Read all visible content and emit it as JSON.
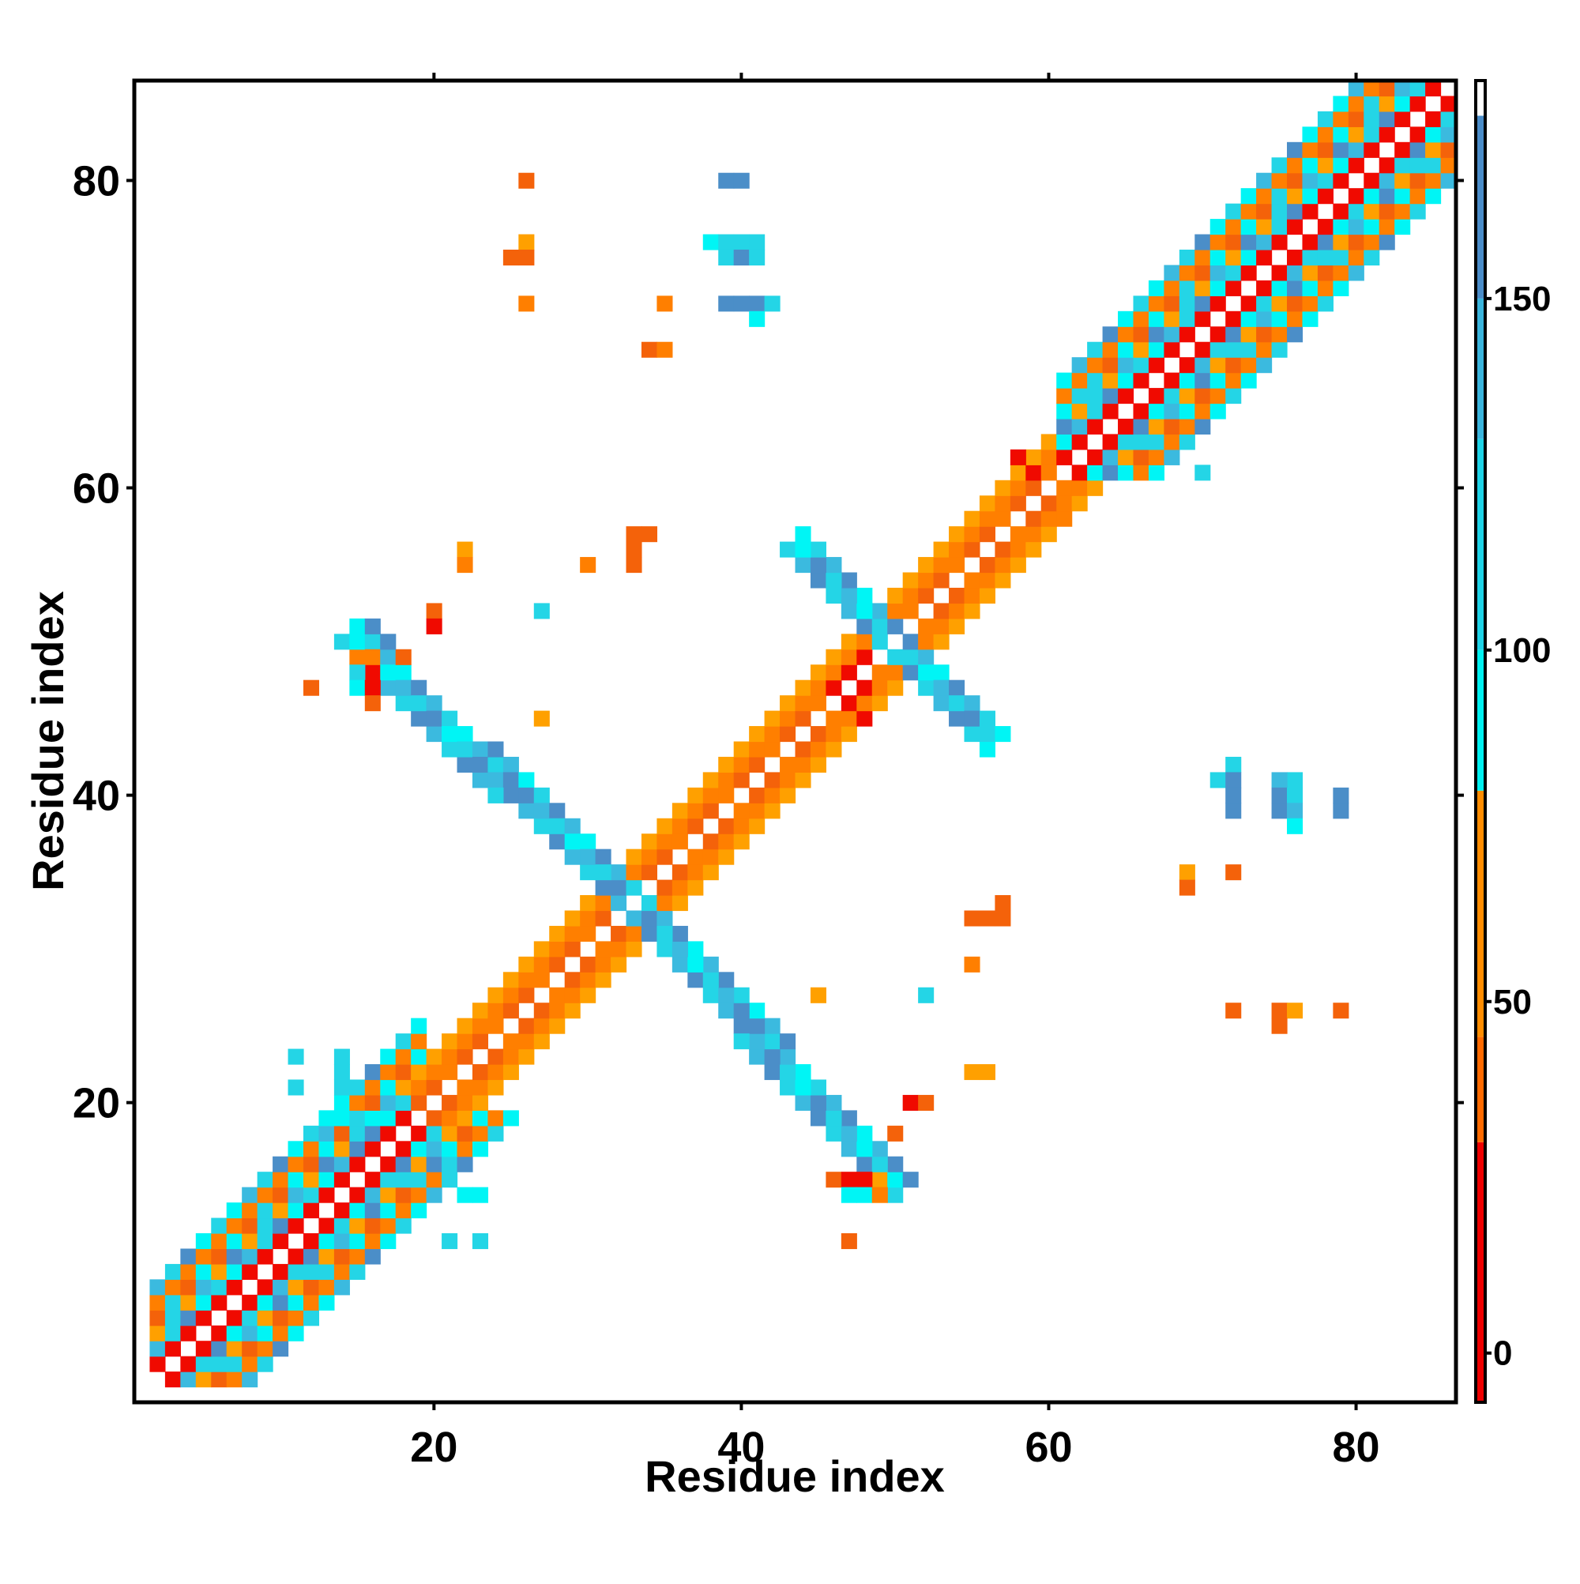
{
  "chart_data": {
    "type": "heatmap",
    "title": "",
    "xlabel": "Residue index",
    "ylabel": "Residue index",
    "xlim": [
      1,
      86
    ],
    "ylim": [
      1,
      86
    ],
    "x_ticks": [
      20,
      40,
      60,
      80
    ],
    "y_ticks": [
      20,
      40,
      60,
      80
    ],
    "colorbar": {
      "range": [
        -7,
        181
      ],
      "ticks": [
        0,
        50,
        100,
        150
      ],
      "bands": [
        {
          "from": -7,
          "to": 30,
          "color": "#ee0000"
        },
        {
          "from": 30,
          "to": 45,
          "color": "#ff6a00"
        },
        {
          "from": 45,
          "to": 80,
          "color": "#ff8c00"
        },
        {
          "from": 80,
          "to": 100,
          "color": "#00f0f0"
        },
        {
          "from": 100,
          "to": 130,
          "color": "#1ed2e6"
        },
        {
          "from": 130,
          "to": 150,
          "color": "#3ab4dc"
        },
        {
          "from": 150,
          "to": 176,
          "color": "#4a8cc8"
        },
        {
          "from": 176,
          "to": 181,
          "color": "#ffffff"
        }
      ]
    },
    "palette": {
      "red": "#f00a00",
      "orange_red": "#f4620a",
      "orange": "#ff7f00",
      "amber": "#ffa000",
      "cyan": "#00f5f5",
      "light_blue": "#24d5e6",
      "sky_blue": "#3bbadf",
      "steel_blue": "#4b8ec8"
    },
    "bands": [
      {
        "name": "diag-helix-1",
        "start": 2,
        "end": 19,
        "width": 6,
        "pattern": "helix"
      },
      {
        "name": "diag-strand-1",
        "start": 19,
        "end": 32,
        "width": 3,
        "pattern": "strand"
      },
      {
        "name": "diag-strand-2",
        "start": 32,
        "end": 50,
        "width": 3,
        "pattern": "strand"
      },
      {
        "name": "diag-strand-3",
        "start": 50,
        "end": 61,
        "width": 3,
        "pattern": "strand"
      },
      {
        "name": "diag-helix-2",
        "start": 61,
        "end": 86,
        "width": 6,
        "pattern": "helix"
      },
      {
        "name": "anti-upper",
        "start": [
          15,
          50
        ],
        "end": [
          33,
          33
        ],
        "width": 2,
        "pattern": "anti"
      },
      {
        "name": "anti-lower",
        "start": [
          33,
          33
        ],
        "end": [
          49,
          16
        ],
        "width": 2,
        "pattern": "anti"
      },
      {
        "name": "anti-right",
        "start": [
          50,
          50
        ],
        "end": [
          56,
          44
        ],
        "width": 2,
        "pattern": "anti"
      },
      {
        "name": "anti-upper-right",
        "start": [
          44,
          56
        ],
        "end": [
          50,
          50
        ],
        "width": 2,
        "pattern": "anti"
      }
    ],
    "scatter_cells": [
      [
        26,
        80,
        "orange_red"
      ],
      [
        39,
        80,
        "steel_blue"
      ],
      [
        40,
        80,
        "steel_blue"
      ],
      [
        26,
        76,
        "amber"
      ],
      [
        25,
        75,
        "orange_red"
      ],
      [
        26,
        75,
        "orange_red"
      ],
      [
        38,
        76,
        "cyan"
      ],
      [
        39,
        76,
        "light_blue"
      ],
      [
        40,
        76,
        "light_blue"
      ],
      [
        41,
        76,
        "light_blue"
      ],
      [
        39,
        75,
        "light_blue"
      ],
      [
        40,
        75,
        "steel_blue"
      ],
      [
        41,
        75,
        "light_blue"
      ],
      [
        26,
        72,
        "orange"
      ],
      [
        35,
        72,
        "orange"
      ],
      [
        39,
        72,
        "steel_blue"
      ],
      [
        40,
        72,
        "steel_blue"
      ],
      [
        41,
        72,
        "steel_blue"
      ],
      [
        42,
        72,
        "light_blue"
      ],
      [
        41,
        71,
        "cyan"
      ],
      [
        34,
        69,
        "orange_red"
      ],
      [
        35,
        69,
        "orange"
      ],
      [
        33,
        57,
        "orange_red"
      ],
      [
        34,
        57,
        "orange_red"
      ],
      [
        33,
        56,
        "orange_red"
      ],
      [
        22,
        56,
        "amber"
      ],
      [
        22,
        55,
        "orange"
      ],
      [
        30,
        55,
        "orange"
      ],
      [
        33,
        55,
        "orange_red"
      ],
      [
        27,
        52,
        "light_blue"
      ],
      [
        20,
        52,
        "orange_red"
      ],
      [
        20,
        51,
        "red"
      ],
      [
        18,
        49,
        "orange_red"
      ],
      [
        16,
        51,
        "steel_blue"
      ],
      [
        16,
        50,
        "light_blue"
      ],
      [
        17,
        50,
        "steel_blue"
      ],
      [
        12,
        47,
        "orange_red"
      ],
      [
        15,
        49,
        "orange"
      ],
      [
        16,
        49,
        "orange"
      ],
      [
        15,
        48,
        "light_blue"
      ],
      [
        15,
        47,
        "cyan"
      ],
      [
        16,
        48,
        "red"
      ],
      [
        16,
        47,
        "red"
      ],
      [
        16,
        46,
        "orange_red"
      ],
      [
        27,
        45,
        "amber"
      ],
      [
        62,
        66,
        "light_blue"
      ],
      [
        70,
        61,
        "light_blue"
      ],
      [
        72,
        42,
        "light_blue"
      ],
      [
        71,
        41,
        "light_blue"
      ],
      [
        72,
        41,
        "steel_blue"
      ],
      [
        72,
        40,
        "steel_blue"
      ],
      [
        72,
        39,
        "steel_blue"
      ],
      [
        76,
        41,
        "light_blue"
      ],
      [
        75,
        41,
        "sky_blue"
      ],
      [
        75,
        40,
        "steel_blue"
      ],
      [
        76,
        40,
        "light_blue"
      ],
      [
        75,
        39,
        "steel_blue"
      ],
      [
        76,
        39,
        "sky_blue"
      ],
      [
        76,
        38,
        "cyan"
      ],
      [
        79,
        40,
        "steel_blue"
      ],
      [
        79,
        39,
        "steel_blue"
      ],
      [
        69,
        35,
        "amber"
      ],
      [
        72,
        35,
        "orange_red"
      ],
      [
        69,
        34,
        "orange_red"
      ],
      [
        57,
        33,
        "orange_red"
      ],
      [
        55,
        32,
        "orange_red"
      ],
      [
        56,
        32,
        "orange_red"
      ],
      [
        57,
        32,
        "orange_red"
      ],
      [
        55,
        29,
        "orange"
      ],
      [
        52,
        27,
        "light_blue"
      ],
      [
        45,
        27,
        "amber"
      ],
      [
        72,
        26,
        "orange_red"
      ],
      [
        75,
        26,
        "orange_red"
      ],
      [
        76,
        26,
        "amber"
      ],
      [
        79,
        26,
        "orange_red"
      ],
      [
        75,
        25,
        "orange_red"
      ],
      [
        55,
        22,
        "amber"
      ],
      [
        56,
        22,
        "amber"
      ],
      [
        51,
        20,
        "red"
      ],
      [
        52,
        20,
        "orange_red"
      ],
      [
        50,
        18,
        "orange_red"
      ],
      [
        49,
        16,
        "light_blue"
      ],
      [
        50,
        16,
        "steel_blue"
      ],
      [
        51,
        15,
        "steel_blue"
      ],
      [
        46,
        15,
        "orange_red"
      ],
      [
        47,
        15,
        "red"
      ],
      [
        48,
        15,
        "red"
      ],
      [
        49,
        15,
        "amber"
      ],
      [
        47,
        14,
        "cyan"
      ],
      [
        48,
        14,
        "cyan"
      ],
      [
        49,
        14,
        "orange"
      ],
      [
        47,
        11,
        "orange_red"
      ],
      [
        11,
        23,
        "light_blue"
      ],
      [
        11,
        21,
        "light_blue"
      ],
      [
        14,
        23,
        "light_blue"
      ],
      [
        14,
        22,
        "light_blue"
      ],
      [
        14,
        21,
        "light_blue"
      ],
      [
        14,
        20,
        "cyan"
      ],
      [
        14,
        19,
        "cyan"
      ],
      [
        16,
        19,
        "cyan"
      ],
      [
        13,
        18,
        "sky_blue"
      ],
      [
        15,
        17,
        "steel_blue"
      ],
      [
        20,
        16,
        "steel_blue"
      ],
      [
        21,
        16,
        "light_blue"
      ],
      [
        22,
        14,
        "cyan"
      ],
      [
        23,
        14,
        "cyan"
      ],
      [
        21,
        11,
        "light_blue"
      ],
      [
        23,
        11,
        "light_blue"
      ],
      [
        48,
        49,
        "red"
      ],
      [
        47,
        48,
        "red"
      ],
      [
        46,
        47,
        "red"
      ],
      [
        48,
        47,
        "red"
      ],
      [
        47,
        46,
        "red"
      ],
      [
        48,
        45,
        "red"
      ],
      [
        52,
        47,
        "light_blue"
      ],
      [
        53,
        46,
        "sky_blue"
      ],
      [
        54,
        45,
        "steel_blue"
      ],
      [
        55,
        44,
        "light_blue"
      ],
      [
        56,
        44,
        "light_blue"
      ],
      [
        56,
        43,
        "cyan"
      ],
      [
        58,
        62,
        "red"
      ],
      [
        59,
        61,
        "red"
      ],
      [
        61,
        58,
        "orange"
      ]
    ]
  }
}
